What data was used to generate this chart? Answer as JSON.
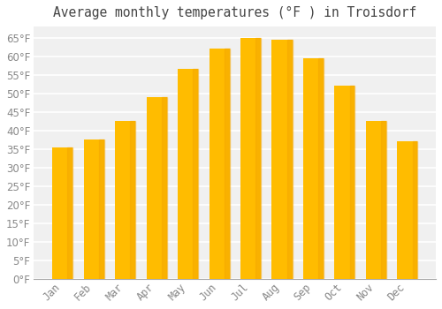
{
  "title": "Average monthly temperatures (°F ) in Troisdorf",
  "months": [
    "Jan",
    "Feb",
    "Mar",
    "Apr",
    "May",
    "Jun",
    "Jul",
    "Aug",
    "Sep",
    "Oct",
    "Nov",
    "Dec"
  ],
  "values": [
    35.5,
    37.5,
    42.5,
    49,
    56.5,
    62,
    65,
    64.5,
    59.5,
    52,
    42.5,
    37
  ],
  "bar_color_face": "#FFBC00",
  "bar_color_edge": "#F5A800",
  "background_color": "#FFFFFF",
  "plot_bg_color": "#F0F0F0",
  "grid_color": "#FFFFFF",
  "tick_label_color": "#888888",
  "title_color": "#444444",
  "ylim": [
    0,
    68
  ],
  "yticks": [
    0,
    5,
    10,
    15,
    20,
    25,
    30,
    35,
    40,
    45,
    50,
    55,
    60,
    65
  ],
  "ylabel_suffix": "°F",
  "title_fontsize": 10.5,
  "tick_fontsize": 8.5,
  "bar_width": 0.65
}
